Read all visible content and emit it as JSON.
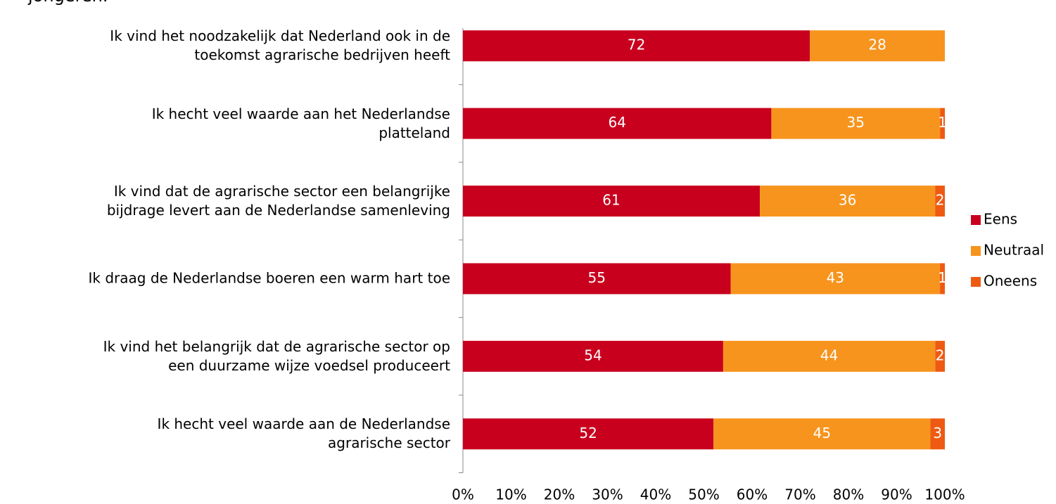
{
  "chart_data": {
    "type": "bar",
    "orientation": "horizontal",
    "stacked": "percent",
    "title": "jongeren.",
    "categories": [
      "Ik vind het noodzakelijk dat Nederland ook in de\ntoekomst agrarische bedrijven heeft",
      "Ik hecht veel waarde aan het Nederlandse\nplatteland",
      "Ik vind dat de agrarische sector een belangrijke\nbijdrage levert aan de Nederlandse samenleving",
      "Ik draag de Nederlandse boeren een warm hart toe",
      "Ik vind het belangrijk dat de agrarische sector op\neen duurzame wijze voedsel produceert",
      "Ik hecht veel waarde aan de Nederlandse\nagrarische sector"
    ],
    "series": [
      {
        "name": "Eens",
        "color": "#c8001e",
        "values": [
          72,
          64,
          61,
          55,
          54,
          52
        ]
      },
      {
        "name": "Neutraal",
        "color": "#f7941d",
        "values": [
          28,
          35,
          36,
          43,
          44,
          45
        ]
      },
      {
        "name": "Oneens",
        "color": "#ee5a12",
        "values": [
          null,
          1,
          2,
          1,
          2,
          3
        ]
      }
    ],
    "xlim": [
      0,
      100
    ],
    "xticks": [
      {
        "value": 0,
        "label": "0%"
      },
      {
        "value": 10,
        "label": "10%"
      },
      {
        "value": 20,
        "label": "20%"
      },
      {
        "value": 30,
        "label": "30%"
      },
      {
        "value": 40,
        "label": "40%"
      },
      {
        "value": 50,
        "label": "50%"
      },
      {
        "value": 60,
        "label": "60%"
      },
      {
        "value": 70,
        "label": "70%"
      },
      {
        "value": 80,
        "label": "80%"
      },
      {
        "value": 90,
        "label": "90%"
      },
      {
        "value": 100,
        "label": "100%"
      }
    ],
    "legend": "right"
  }
}
